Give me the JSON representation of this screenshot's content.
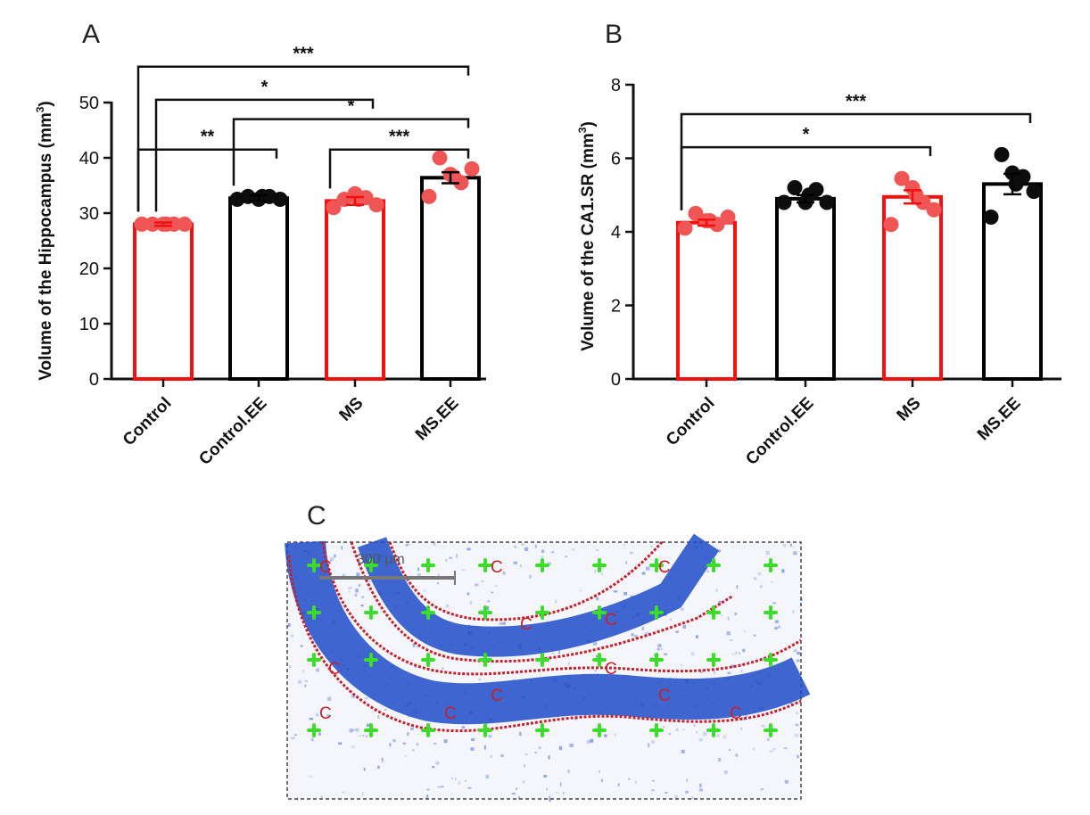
{
  "colors": {
    "red": "#f50f0f",
    "black": "#000000",
    "dot_red": "#f05555",
    "dot_black": "#0d0d0d",
    "stain_blue": "#1e4bc8",
    "grid_green": "#3cdc2a",
    "outline_red": "#c8202a"
  },
  "chart_data": [
    {
      "panel": "A",
      "type": "bar",
      "ylabel": "Volume of the Hippocampus (mm",
      "ylabel_sup": "3",
      "ylabel_close": ")",
      "ylim": [
        0,
        50
      ],
      "yticks": [
        0,
        10,
        20,
        30,
        40,
        50
      ],
      "categories": [
        "Control",
        "Control.EE",
        "MS",
        "MS.EE"
      ],
      "bar_colors": [
        "red",
        "black",
        "red",
        "black"
      ],
      "dot_colors": [
        "red",
        "black",
        "red",
        "red"
      ],
      "values": [
        28.0,
        32.7,
        32.2,
        36.4
      ],
      "sem": [
        0.3,
        0.5,
        0.7,
        1.0
      ],
      "points": [
        [
          28.0,
          28.0,
          28.0,
          28.0,
          28.0,
          28.0
        ],
        [
          32.5,
          33.0,
          32.5,
          33.0,
          32.5,
          33.0
        ],
        [
          31.0,
          32.5,
          33.5,
          32.8,
          31.5,
          32.5
        ],
        [
          33.0,
          40.0,
          37.0,
          35.5,
          38.0,
          36.5
        ]
      ],
      "significance": [
        {
          "from": 0,
          "to": 3,
          "label": "***",
          "y": 56.5
        },
        {
          "from": 0,
          "to": 2,
          "label": "*",
          "y": 50.5
        },
        {
          "from": 1,
          "to": 3,
          "label": "*",
          "y": 47.0
        },
        {
          "from": 0,
          "to": 1,
          "label": "**",
          "y": 41.5
        },
        {
          "from": 2,
          "to": 3,
          "label": "***",
          "y": 41.5
        }
      ]
    },
    {
      "panel": "B",
      "type": "bar",
      "ylabel": "Volume of the CA1.SR (mm",
      "ylabel_sup": "3",
      "ylabel_close": ")",
      "ylim": [
        0,
        8
      ],
      "yticks": [
        0,
        2,
        4,
        6,
        8
      ],
      "categories": [
        "Control",
        "Control.EE",
        "MS",
        "MS.EE"
      ],
      "bar_colors": [
        "red",
        "black",
        "red",
        "black"
      ],
      "dot_colors": [
        "red",
        "black",
        "red",
        "black"
      ],
      "values": [
        4.25,
        4.9,
        4.95,
        5.3
      ],
      "sem": [
        0.08,
        0.1,
        0.18,
        0.28
      ],
      "points": [
        [
          4.1,
          4.5,
          4.3,
          4.2,
          4.4,
          4.3
        ],
        [
          4.8,
          5.2,
          4.8,
          5.15,
          4.8,
          5.0
        ],
        [
          4.2,
          5.45,
          5.2,
          4.8,
          4.6,
          5.0
        ],
        [
          4.4,
          6.1,
          5.6,
          5.5,
          5.1,
          5.3
        ]
      ],
      "significance": [
        {
          "from": 0,
          "to": 3,
          "label": "***",
          "y": 7.2
        },
        {
          "from": 0,
          "to": 2,
          "label": "*",
          "y": 6.3
        }
      ]
    }
  ],
  "panel_c": {
    "label": "C",
    "scale_bar_label": "300 μm",
    "marker_letter": "C"
  }
}
